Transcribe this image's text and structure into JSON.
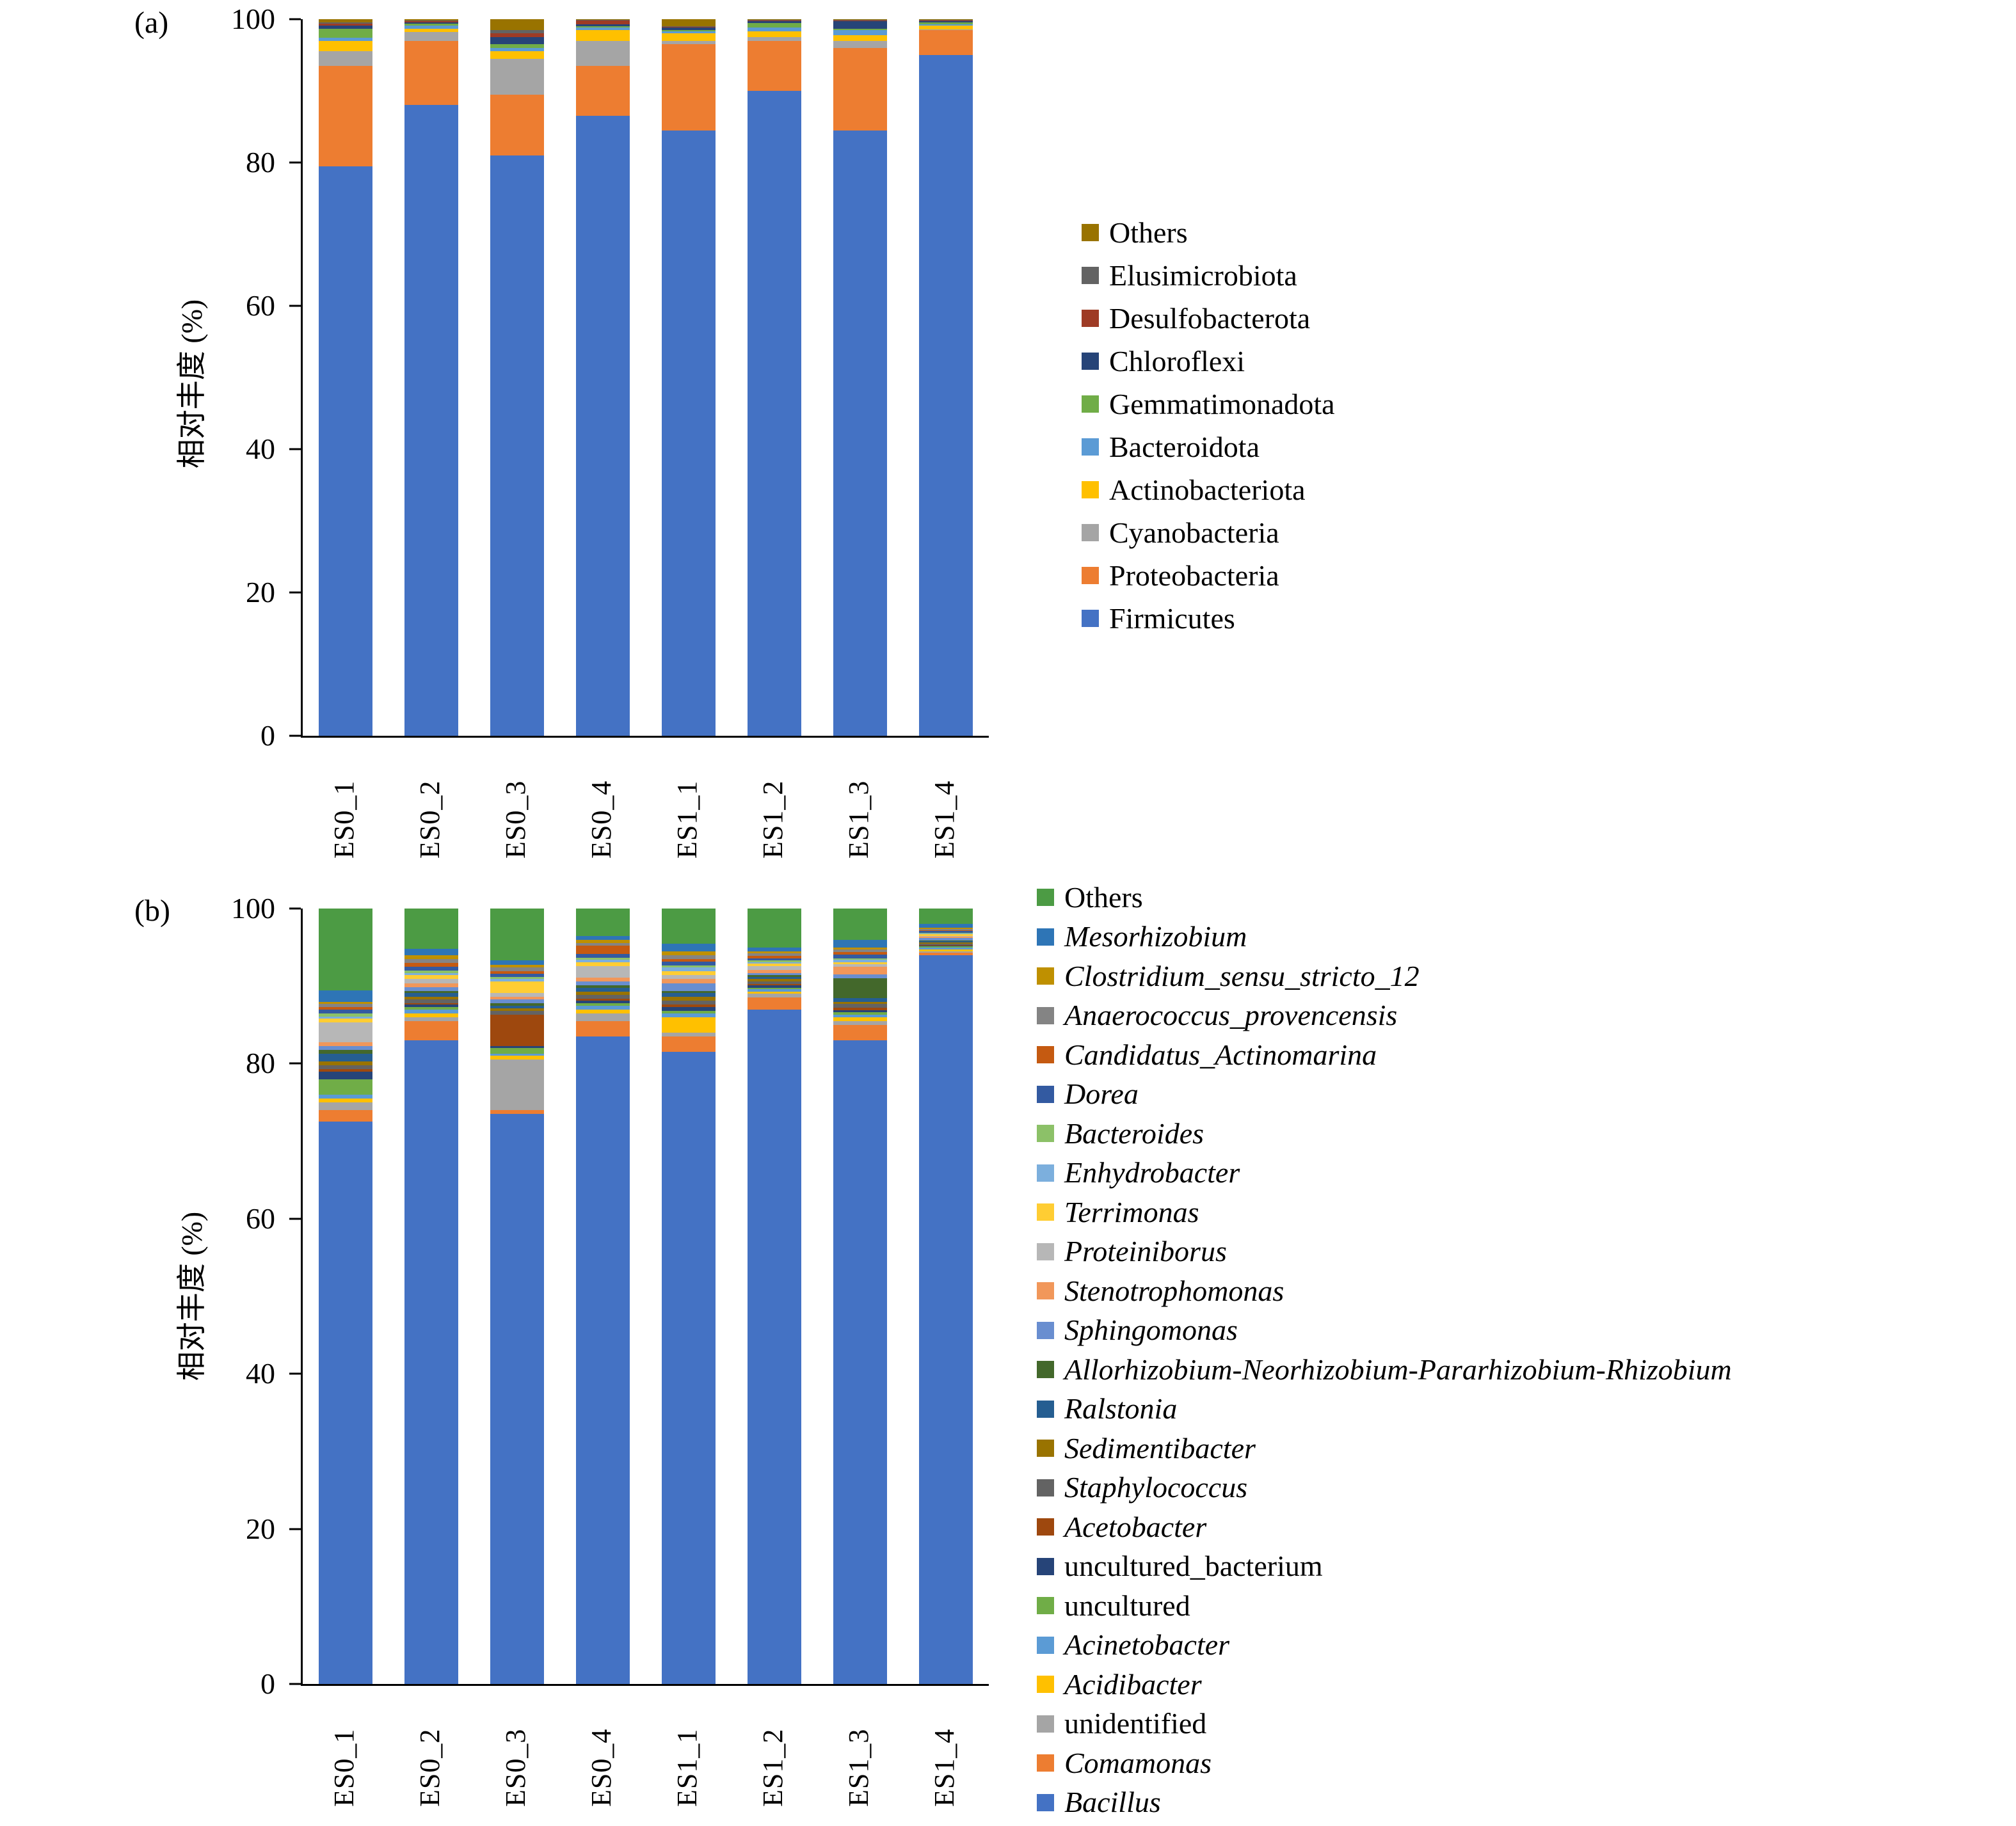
{
  "figure": {
    "background": "#ffffff"
  },
  "chart_data": [
    {
      "id": "a",
      "type": "bar",
      "stacked": true,
      "panel_label": "(a)",
      "ylabel": "相对丰度 (%)",
      "ylim": [
        0,
        100
      ],
      "yticks": [
        0,
        20,
        40,
        60,
        80,
        100
      ],
      "grid": false,
      "legend_position": "right",
      "categories": [
        "ES0_1",
        "ES0_2",
        "ES0_3",
        "ES0_4",
        "ES1_1",
        "ES1_2",
        "ES1_3",
        "ES1_4"
      ],
      "series": [
        {
          "name": "Firmicutes",
          "color": "#4472C4",
          "italic": false,
          "values": [
            79.5,
            88.0,
            81.0,
            86.5,
            84.5,
            90.0,
            84.5,
            95.0
          ]
        },
        {
          "name": "Proteobacteria",
          "color": "#ED7D31",
          "italic": false,
          "values": [
            14.0,
            9.0,
            8.5,
            7.0,
            12.0,
            7.0,
            11.5,
            3.5
          ]
        },
        {
          "name": "Cyanobacteria",
          "color": "#A5A5A5",
          "italic": false,
          "values": [
            2.0,
            1.2,
            5.0,
            3.5,
            0.5,
            0.5,
            1.0,
            0.1
          ]
        },
        {
          "name": "Actinobacteriota",
          "color": "#FFC000",
          "italic": false,
          "values": [
            1.5,
            0.5,
            1.0,
            1.5,
            1.0,
            0.8,
            0.8,
            0.5
          ]
        },
        {
          "name": "Bacteroidota",
          "color": "#5B9BD5",
          "italic": false,
          "values": [
            0.4,
            0.4,
            0.5,
            0.3,
            0.3,
            0.5,
            0.7,
            0.2
          ]
        },
        {
          "name": "Gemmatimonadota",
          "color": "#70AD47",
          "italic": false,
          "values": [
            1.3,
            0.3,
            0.5,
            0.2,
            0.2,
            0.7,
            0.2,
            0.3
          ]
        },
        {
          "name": "Chloroflexi",
          "color": "#264478",
          "italic": false,
          "values": [
            0.4,
            0.2,
            1.0,
            0.3,
            0.3,
            0.2,
            1.0,
            0.1
          ]
        },
        {
          "name": "Desulfobacterota",
          "color": "#9E3B25",
          "italic": false,
          "values": [
            0.3,
            0.1,
            0.5,
            0.5,
            0.1,
            0.1,
            0.1,
            0.1
          ]
        },
        {
          "name": "Elusimicrobiota",
          "color": "#636363",
          "italic": false,
          "values": [
            0.2,
            0.1,
            0.5,
            0.1,
            0.1,
            0.1,
            0.1,
            0.1
          ]
        },
        {
          "name": "Others",
          "color": "#997300",
          "italic": false,
          "values": [
            0.4,
            0.2,
            1.5,
            0.1,
            1.0,
            0.1,
            0.1,
            0.1
          ]
        }
      ]
    },
    {
      "id": "b",
      "type": "bar",
      "stacked": true,
      "panel_label": "(b)",
      "ylabel": "相对丰度 (%)",
      "ylim": [
        0,
        100
      ],
      "yticks": [
        0,
        20,
        40,
        60,
        80,
        100
      ],
      "grid": false,
      "legend_position": "right",
      "categories": [
        "ES0_1",
        "ES0_2",
        "ES0_3",
        "ES0_4",
        "ES1_1",
        "ES1_2",
        "ES1_3",
        "ES1_4"
      ],
      "series": [
        {
          "name": "Bacillus",
          "color": "#4472C4",
          "italic": true,
          "values": [
            72.5,
            83.0,
            73.5,
            83.5,
            81.5,
            87.0,
            83.0,
            94.0
          ]
        },
        {
          "name": "Comamonas",
          "color": "#ED7D31",
          "italic": true,
          "values": [
            1.5,
            2.5,
            0.5,
            2.0,
            2.0,
            1.5,
            2.0,
            0.3
          ]
        },
        {
          "name": "unidentified",
          "color": "#A5A5A5",
          "italic": false,
          "values": [
            1.0,
            0.5,
            6.5,
            1.0,
            0.5,
            0.5,
            0.5,
            0.2
          ]
        },
        {
          "name": "Acidibacter",
          "color": "#FFC000",
          "italic": true,
          "values": [
            0.5,
            0.5,
            0.5,
            0.5,
            2.0,
            0.3,
            0.5,
            0.2
          ]
        },
        {
          "name": "Acinetobacter",
          "color": "#5B9BD5",
          "italic": true,
          "values": [
            0.5,
            0.5,
            0.3,
            0.5,
            0.5,
            0.3,
            0.3,
            0.3
          ]
        },
        {
          "name": "uncultured",
          "color": "#70AD47",
          "italic": false,
          "values": [
            2.0,
            0.3,
            0.7,
            0.3,
            0.3,
            0.2,
            0.3,
            0.1
          ]
        },
        {
          "name": "uncultured_bacterium",
          "color": "#264478",
          "italic": false,
          "values": [
            1.0,
            0.3,
            0.3,
            0.3,
            0.5,
            0.3,
            0.3,
            0.1
          ]
        },
        {
          "name": "Acetobacter",
          "color": "#9E480E",
          "italic": true,
          "values": [
            0.3,
            0.2,
            4.0,
            0.3,
            0.3,
            0.2,
            0.3,
            0.1
          ]
        },
        {
          "name": "Staphylococcus",
          "color": "#636363",
          "italic": true,
          "values": [
            0.5,
            0.5,
            0.5,
            0.5,
            0.5,
            0.3,
            0.5,
            0.2
          ]
        },
        {
          "name": "Sedimentibacter",
          "color": "#997300",
          "italic": true,
          "values": [
            0.5,
            0.3,
            0.3,
            0.4,
            0.5,
            0.3,
            0.3,
            0.1
          ]
        },
        {
          "name": "Ralstonia",
          "color": "#255E91",
          "italic": true,
          "values": [
            1.0,
            0.5,
            0.4,
            0.5,
            0.5,
            0.3,
            0.5,
            0.2
          ]
        },
        {
          "name": "Allorhizobium-Neorhizobium-Pararhizobium-Rhizobium",
          "color": "#43682B",
          "italic": true,
          "values": [
            0.5,
            0.3,
            0.3,
            0.3,
            0.3,
            0.2,
            2.5,
            0.1
          ]
        },
        {
          "name": "Sphingomonas",
          "color": "#698ED0",
          "italic": true,
          "values": [
            0.5,
            0.5,
            0.5,
            0.5,
            1.0,
            0.3,
            0.5,
            0.3
          ]
        },
        {
          "name": "Stenotrophomonas",
          "color": "#F1975A",
          "italic": true,
          "values": [
            0.5,
            0.5,
            0.3,
            0.5,
            0.5,
            0.4,
            1.0,
            0.2
          ]
        },
        {
          "name": "Proteiniborus",
          "color": "#B7B7B7",
          "italic": true,
          "values": [
            2.5,
            0.5,
            0.5,
            1.5,
            0.5,
            0.5,
            0.3,
            0.1
          ]
        },
        {
          "name": "Terrimonas",
          "color": "#FFCD33",
          "italic": true,
          "values": [
            0.5,
            0.5,
            1.5,
            0.5,
            0.5,
            0.3,
            0.3,
            0.2
          ]
        },
        {
          "name": "Enhydrobacter",
          "color": "#7CAFDD",
          "italic": true,
          "values": [
            0.3,
            0.3,
            0.3,
            0.3,
            0.5,
            0.2,
            0.3,
            0.1
          ]
        },
        {
          "name": "Bacteroides",
          "color": "#8CC168",
          "italic": true,
          "values": [
            0.4,
            0.3,
            0.3,
            0.3,
            0.3,
            0.2,
            0.2,
            0.1
          ]
        },
        {
          "name": "Dorea",
          "color": "#335AA1",
          "italic": true,
          "values": [
            0.5,
            0.5,
            0.4,
            0.5,
            0.5,
            0.3,
            0.5,
            0.2
          ]
        },
        {
          "name": "Candidatus_Actinomarina",
          "color": "#C55A11",
          "italic": true,
          "values": [
            0.3,
            0.5,
            0.3,
            1.0,
            0.3,
            0.3,
            0.3,
            0.1
          ]
        },
        {
          "name": "Anaerococcus_provencensis",
          "color": "#848484",
          "italic": true,
          "values": [
            0.4,
            0.5,
            0.5,
            0.4,
            0.5,
            0.3,
            0.3,
            0.2
          ]
        },
        {
          "name": "Clostridium_sensu_stricto_12",
          "color": "#BF9000",
          "italic": true,
          "values": [
            0.3,
            0.5,
            0.4,
            0.4,
            0.5,
            0.3,
            0.3,
            0.1
          ]
        },
        {
          "name": "Mesorhizobium",
          "color": "#2E75B6",
          "italic": true,
          "values": [
            1.5,
            0.8,
            0.5,
            0.5,
            1.0,
            0.5,
            1.0,
            0.5
          ]
        },
        {
          "name": "Others",
          "color": "#4C9B44",
          "italic": false,
          "values": [
            10.5,
            5.2,
            6.7,
            3.5,
            4.5,
            5.0,
            4.0,
            2.0
          ]
        }
      ]
    }
  ]
}
